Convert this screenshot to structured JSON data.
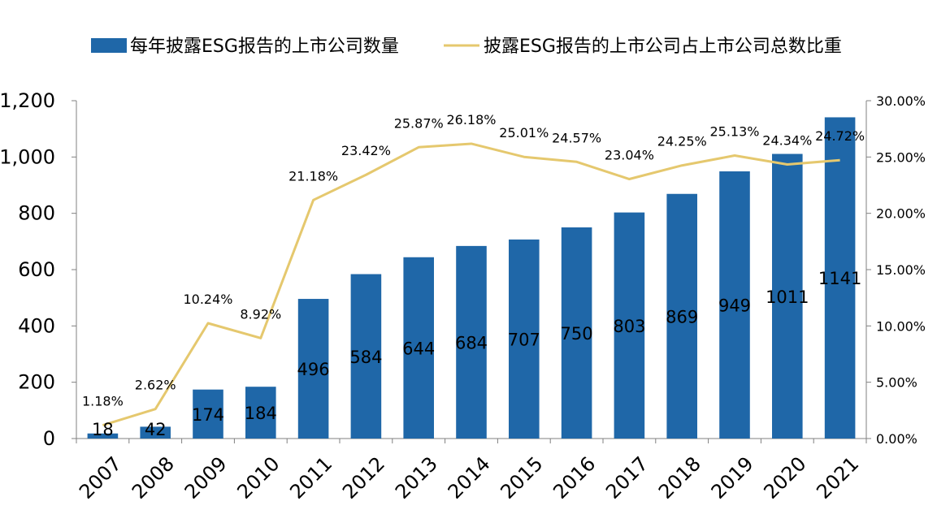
{
  "chart_data": {
    "type": "bar",
    "categories": [
      "2007",
      "2008",
      "2009",
      "2010",
      "2011",
      "2012",
      "2013",
      "2014",
      "2015",
      "2016",
      "2017",
      "2018",
      "2019",
      "2020",
      "2021"
    ],
    "series": [
      {
        "name": "每年披露ESG报告的上市公司数量",
        "type": "bar",
        "axis": "left",
        "color": "#1f67a8",
        "values": [
          18,
          42,
          174,
          184,
          496,
          584,
          644,
          684,
          707,
          750,
          803,
          869,
          949,
          1011,
          1141
        ],
        "labels": [
          "18",
          "42",
          "174",
          "184",
          "496",
          "584",
          "644",
          "684",
          "707",
          "750",
          "803",
          "869",
          "949",
          "1011",
          "1141"
        ]
      },
      {
        "name": "披露ESG报告的上市公司占上市公司总数比重",
        "type": "line",
        "axis": "right",
        "color": "#e5c86e",
        "values": [
          1.18,
          2.62,
          10.24,
          8.92,
          21.18,
          23.42,
          25.87,
          26.18,
          25.01,
          24.57,
          23.04,
          24.25,
          25.13,
          24.34,
          24.72
        ],
        "labels": [
          "1.18%",
          "2.62%",
          "10.24%",
          "8.92%",
          "21.18%",
          "23.42%",
          "25.87%",
          "26.18%",
          "25.01%",
          "24.57%",
          "23.04%",
          "24.25%",
          "25.13%",
          "24.34%",
          "24.72%"
        ]
      }
    ],
    "y_left": {
      "ylim": [
        0,
        1200
      ],
      "ticks": [
        0,
        200,
        400,
        600,
        800,
        1000,
        1200
      ],
      "tick_labels": [
        "0",
        "200",
        "400",
        "600",
        "800",
        "1,000",
        "1,200"
      ]
    },
    "y_right": {
      "ylim": [
        0,
        30
      ],
      "ticks": [
        0,
        5,
        10,
        15,
        20,
        25,
        30
      ],
      "tick_labels": [
        "0.00%",
        "5.00%",
        "10.00%",
        "15.00%",
        "20.00%",
        "25.00%",
        "30.00%"
      ]
    },
    "legend_position": "top",
    "grid": false
  }
}
